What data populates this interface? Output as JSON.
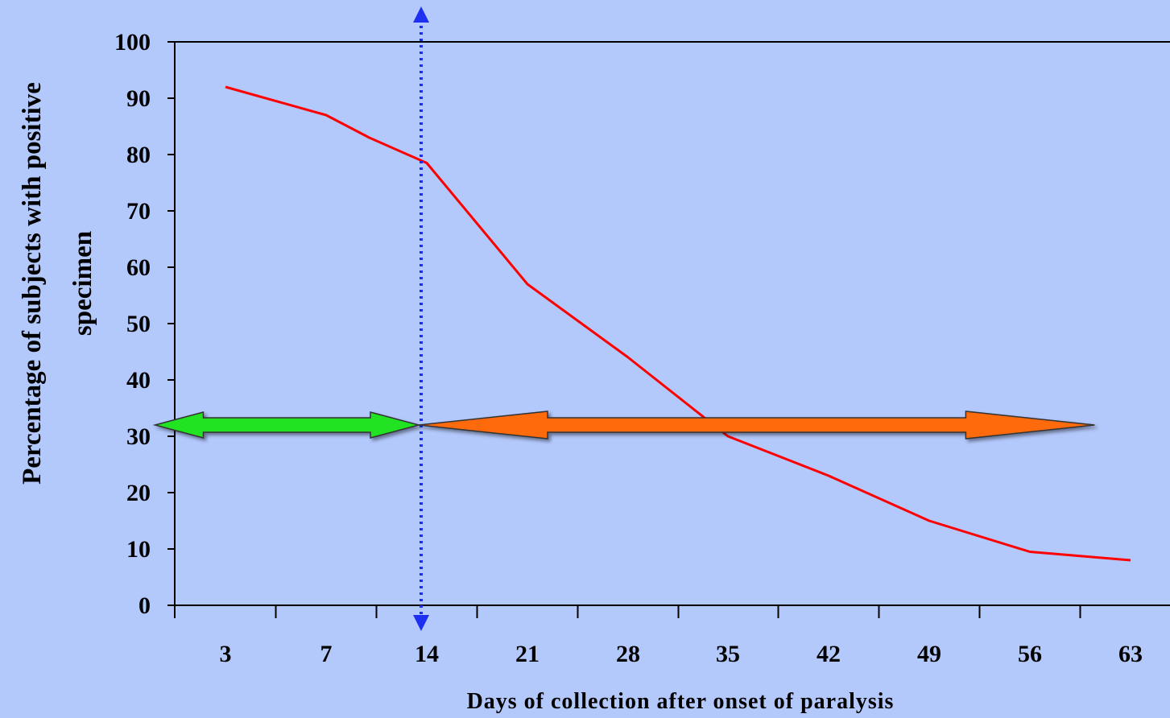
{
  "chart_data": {
    "type": "line",
    "title": "",
    "xlabel": "Days of collection after onset of paralysis",
    "ylabel": "Percentage of subjects with positive specimen",
    "ylabel_lines": [
      "Percentage of subjects with positive",
      "specimen"
    ],
    "categories": [
      "3",
      "7",
      "14",
      "21",
      "28",
      "35",
      "42",
      "49",
      "56",
      "63"
    ],
    "ylim": [
      0,
      100
    ],
    "yticks": [
      0,
      10,
      20,
      30,
      40,
      50,
      60,
      70,
      80,
      90,
      100
    ],
    "grid": false,
    "series": [
      {
        "color": "#ff0000",
        "x": [
          3,
          7,
          10,
          14,
          21,
          28,
          35,
          42,
          49,
          56,
          63
        ],
        "values": [
          92,
          87,
          83,
          78.5,
          57,
          44,
          30,
          23,
          15,
          9.5,
          8
        ]
      }
    ],
    "annotations": {
      "vertical_marker": {
        "x": 14,
        "color": "#1d2ff0",
        "style": "dotted"
      },
      "green_arrow": {
        "from_day": 0.2,
        "to_day": 14,
        "y": 32,
        "color": "#22e322"
      },
      "orange_arrow": {
        "from_day": 14,
        "to_day": 60.5,
        "y": 32,
        "color": "#ff6a10"
      }
    }
  }
}
